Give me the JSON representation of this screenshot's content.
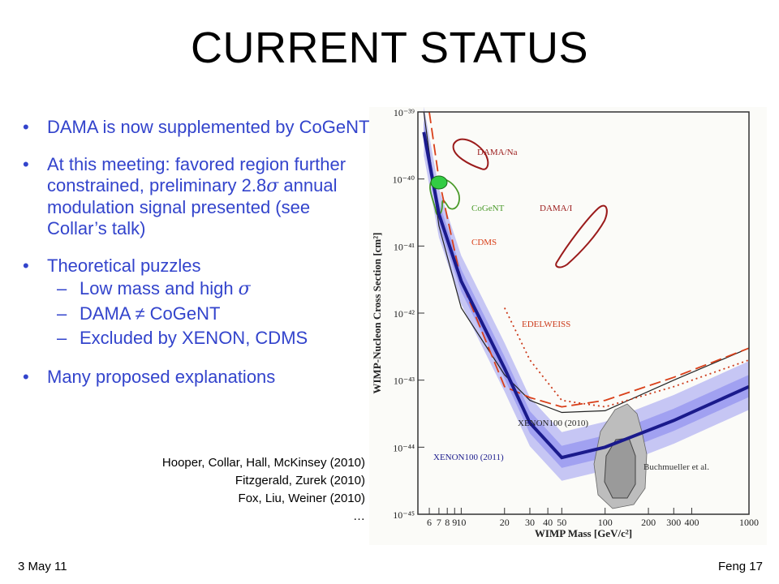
{
  "slide": {
    "title": "CURRENT STATUS",
    "bullets": [
      {
        "text": "DAMA is now supplemented by CoGeNT"
      },
      {
        "text": "At this meeting: favored region further constrained, preliminary 2.8",
        "sigma": "σ",
        "text_after": " annual modulation signal presented (see Collar’s talk)"
      },
      {
        "text": "Theoretical puzzles"
      },
      {
        "text": "Many proposed explanations"
      }
    ],
    "subbullets": [
      {
        "dash": "–",
        "text": "Low mass and high ",
        "sigma": "σ"
      },
      {
        "dash": "–",
        "text": "DAMA ≠ CoGeNT",
        "sigma": ""
      },
      {
        "dash": "–",
        "text": "Excluded by XENON, CDMS",
        "sigma": ""
      }
    ],
    "references": [
      "Hooper, Collar, Hall, McKinsey (2010)",
      "Fitzgerald, Zurek (2010)",
      "Fox, Liu, Weiner (2010)",
      "…"
    ],
    "footer_left": "3 May 11",
    "footer_right": "Feng  17"
  },
  "chart_data": {
    "type": "line",
    "xlabel": "WIMP Mass [GeV/c²]",
    "ylabel": "WIMP-Nucleon Cross Section [cm²]",
    "x_scale": "log",
    "y_scale": "log",
    "xlim": [
      5,
      1000
    ],
    "ylim": [
      1e-45,
      1e-39
    ],
    "x_ticks": [
      "6",
      "7",
      "8",
      "9",
      "10",
      "20",
      "30",
      "40",
      "50",
      "100",
      "200",
      "300",
      "400",
      "1000"
    ],
    "y_ticks": [
      "10⁻³⁹",
      "10⁻⁴⁰",
      "10⁻⁴¹",
      "10⁻⁴²",
      "10⁻⁴³",
      "10⁻⁴⁴",
      "10⁻⁴⁵"
    ],
    "labels": [
      "DAMA/Na",
      "CoGeNT",
      "DAMA/I",
      "CDMS",
      "EDELWEISS",
      "XENON100 (2010)",
      "XENON100 (2011)",
      "Buchmueller et al."
    ],
    "colors": {
      "dama": "#9b1b1b",
      "cogent": "#4a9a2a",
      "cdms": "#d9401a",
      "edelweiss": "#cc3a1a",
      "xenon2010": "#222222",
      "xenon2011": "#1a1a8c",
      "band": "#9a9af0",
      "buch": "#9a9a9a",
      "marker": "#33cc44"
    },
    "series": [
      {
        "name": "XENON100 (2010)",
        "x": [
          5.5,
          7,
          10,
          20,
          30,
          50,
          100,
          300,
          1000
        ],
        "y": [
          1e-39,
          2e-41,
          1.2e-42,
          1.2e-43,
          5e-44,
          3.3e-44,
          3.5e-44,
          1e-43,
          3e-43
        ]
      },
      {
        "name": "XENON100 (2011)",
        "x": [
          5.5,
          7,
          10,
          20,
          30,
          50,
          100,
          300,
          1000
        ],
        "y": [
          5e-40,
          3e-41,
          3e-42,
          1.5e-43,
          2.3e-44,
          7e-45,
          1e-44,
          2.5e-44,
          8e-44
        ]
      },
      {
        "name": "CDMS",
        "x": [
          6,
          7,
          10,
          20,
          30,
          50,
          100,
          300,
          1000
        ],
        "y": [
          1e-39,
          1e-40,
          3e-42,
          8e-44,
          5.5e-44,
          4e-44,
          5e-44,
          1.1e-43,
          3e-43
        ]
      },
      {
        "name": "EDELWEISS",
        "x": [
          20,
          30,
          50,
          100,
          300,
          1000
        ],
        "y": [
          1.2e-42,
          2e-43,
          5e-44,
          4e-44,
          8e-44,
          2e-43
        ]
      }
    ]
  }
}
